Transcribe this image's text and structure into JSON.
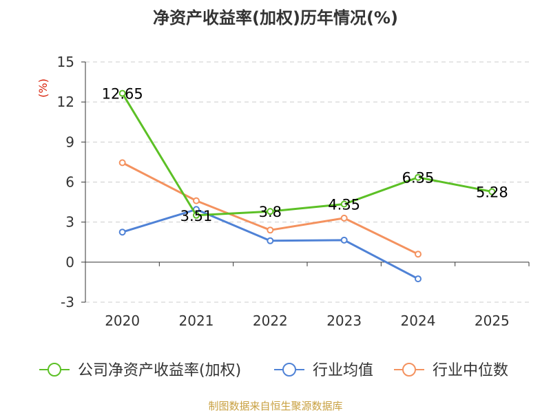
{
  "chart_data": {
    "type": "line",
    "title": "净资产收益率(加权)历年情况(%)",
    "ylabel": "(%)",
    "xlabel": "",
    "ylim": [
      -3,
      15
    ],
    "yticks": [
      -3,
      0,
      3,
      6,
      9,
      12,
      15
    ],
    "categories": [
      "2020",
      "2021",
      "2022",
      "2023",
      "2024",
      "2025"
    ],
    "series": [
      {
        "name": "公司净资产收益率(加权)",
        "color": "#5cc026",
        "values": [
          12.65,
          3.51,
          3.8,
          4.35,
          6.35,
          5.28
        ],
        "labels": [
          "12.65",
          "3.51",
          "3.8",
          "4.35",
          "6.35",
          "5.28"
        ]
      },
      {
        "name": "行业均值",
        "color": "#4f82d6",
        "values": [
          2.25,
          3.95,
          1.6,
          1.65,
          -1.25,
          null
        ],
        "labels": null
      },
      {
        "name": "行业中位数",
        "color": "#f4925f",
        "values": [
          7.45,
          4.6,
          2.4,
          3.3,
          0.6,
          null
        ],
        "labels": null
      }
    ]
  },
  "footer": "制图数据来自恒生聚源数据库"
}
